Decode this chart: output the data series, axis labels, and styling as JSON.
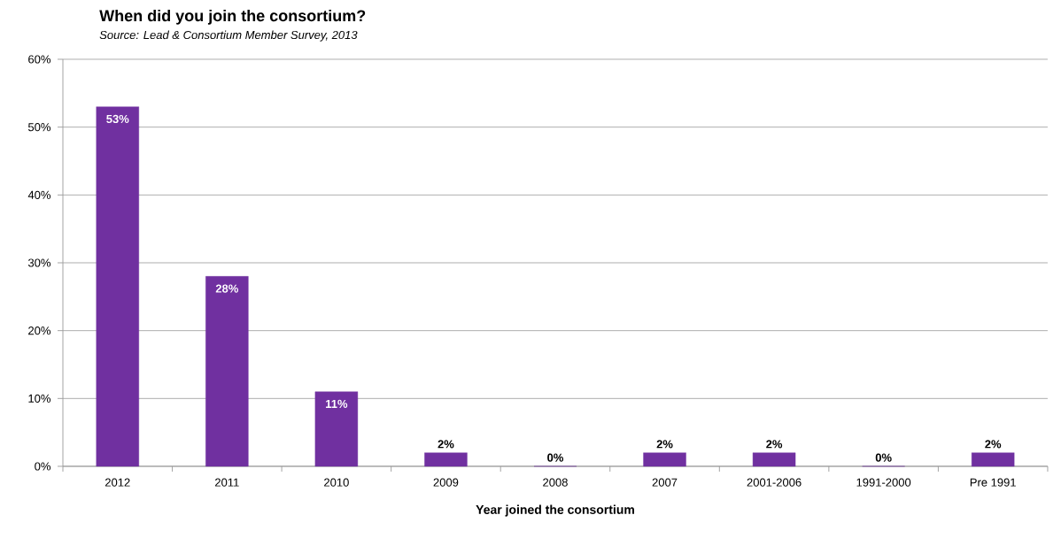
{
  "chart_data": {
    "type": "bar",
    "title": "When did you join the consortium?",
    "subtitle": "Source: Lead & Consortium Member Survey, 2013",
    "xlabel": "Year joined the consortium",
    "categories": [
      "2012",
      "2011",
      "2010",
      "2009",
      "2008",
      "2007",
      "2001-2006",
      "1991-2000",
      "Pre 1991"
    ],
    "values": [
      53,
      28,
      11,
      2,
      0,
      2,
      2,
      0,
      2
    ],
    "value_labels": [
      "53%",
      "28%",
      "11%",
      "2%",
      "0%",
      "2%",
      "2%",
      "0%",
      "2%"
    ],
    "color": "#7030a0",
    "ylim": [
      0,
      60
    ],
    "yticks": [
      {
        "value": 0,
        "label": "0%"
      },
      {
        "value": 10,
        "label": "10%"
      },
      {
        "value": 20,
        "label": "20%"
      },
      {
        "value": 30,
        "label": "30%"
      },
      {
        "value": 40,
        "label": "40%"
      },
      {
        "value": 50,
        "label": "50%"
      },
      {
        "value": 60,
        "label": "60%"
      }
    ],
    "grid": "y"
  }
}
